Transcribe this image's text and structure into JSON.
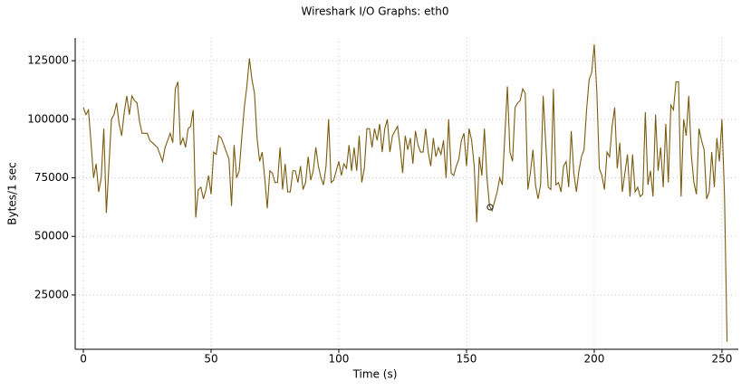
{
  "chart_data": {
    "type": "line",
    "title": "Wireshark I/O Graphs: eth0",
    "x_label": "Time (s)",
    "y_label": "Bytes/1 sec",
    "grid": true,
    "xlim": [
      -3.2,
      256.4
    ],
    "ylim": [
      1800,
      134700
    ],
    "xticks": [
      0,
      50,
      100,
      150,
      200,
      250
    ],
    "yticks": [
      25000,
      50000,
      75000,
      100000,
      125000
    ],
    "x": [
      0,
      1,
      2,
      3,
      4,
      5,
      6,
      7,
      8,
      9,
      10,
      11,
      12,
      13,
      14,
      15,
      16,
      17,
      18,
      19,
      20,
      21,
      22,
      23,
      24,
      25,
      26,
      27,
      28,
      29,
      30,
      31,
      32,
      33,
      34,
      35,
      36,
      37,
      38,
      39,
      40,
      41,
      42,
      43,
      44,
      45,
      46,
      47,
      48,
      49,
      50,
      51,
      52,
      53,
      54,
      55,
      56,
      57,
      58,
      59,
      60,
      61,
      62,
      63,
      64,
      65,
      66,
      67,
      68,
      69,
      70,
      71,
      72,
      73,
      74,
      75,
      76,
      77,
      78,
      79,
      80,
      81,
      82,
      83,
      84,
      85,
      86,
      87,
      88,
      89,
      90,
      91,
      92,
      93,
      94,
      95,
      96,
      97,
      98,
      99,
      100,
      101,
      102,
      103,
      104,
      105,
      106,
      107,
      108,
      109,
      110,
      111,
      112,
      113,
      114,
      115,
      116,
      117,
      118,
      119,
      120,
      121,
      122,
      123,
      124,
      125,
      126,
      127,
      128,
      129,
      130,
      131,
      132,
      133,
      134,
      135,
      136,
      137,
      138,
      139,
      140,
      141,
      142,
      143,
      144,
      145,
      146,
      147,
      148,
      149,
      150,
      151,
      152,
      153,
      154,
      155,
      156,
      157,
      158,
      159,
      160,
      161,
      162,
      163,
      164,
      165,
      166,
      167,
      168,
      169,
      170,
      171,
      172,
      173,
      174,
      175,
      176,
      177,
      178,
      179,
      180,
      181,
      182,
      183,
      184,
      185,
      186,
      187,
      188,
      189,
      190,
      191,
      192,
      193,
      194,
      195,
      196,
      197,
      198,
      199,
      200,
      201,
      202,
      203,
      204,
      205,
      206,
      207,
      208,
      209,
      210,
      211,
      212,
      213,
      214,
      215,
      216,
      217,
      218,
      219,
      220,
      221,
      222,
      223,
      224,
      225,
      226,
      227,
      228,
      229,
      230,
      231,
      232,
      233,
      234,
      235,
      236,
      237,
      238,
      239,
      240,
      241,
      242,
      243,
      244,
      245,
      246,
      247,
      248,
      249,
      250,
      251,
      252
    ],
    "series": [
      {
        "name": "eth0",
        "color": "#7a5c10",
        "values": [
          105000,
          102000,
          104000,
          90000,
          75000,
          81000,
          69000,
          75000,
          96000,
          60000,
          80000,
          100000,
          102000,
          107000,
          98000,
          93000,
          103000,
          110000,
          102000,
          110000,
          108000,
          107000,
          99000,
          94000,
          94000,
          94000,
          91000,
          90000,
          89000,
          88000,
          85000,
          82000,
          88000,
          91000,
          94000,
          90000,
          113000,
          116000,
          89000,
          92000,
          88000,
          96000,
          97000,
          104000,
          58000,
          70000,
          71000,
          66000,
          70000,
          76000,
          68000,
          86000,
          85000,
          93000,
          92000,
          89000,
          86000,
          83000,
          63000,
          89000,
          75000,
          78000,
          92000,
          105000,
          114000,
          126000,
          117000,
          111000,
          92000,
          82000,
          86000,
          75000,
          62000,
          78000,
          77000,
          73000,
          73000,
          88000,
          70000,
          81000,
          69000,
          69000,
          78000,
          78000,
          73000,
          80000,
          70000,
          73000,
          84000,
          74000,
          78000,
          88000,
          80000,
          75000,
          72000,
          80000,
          100000,
          73000,
          74000,
          78000,
          82000,
          76000,
          81000,
          79000,
          89000,
          78000,
          88000,
          78000,
          93000,
          73000,
          79000,
          96000,
          96000,
          88000,
          96000,
          91000,
          98000,
          86000,
          96000,
          100000,
          86000,
          93000,
          95000,
          97000,
          88000,
          77000,
          93000,
          87000,
          92000,
          81000,
          95000,
          89000,
          86000,
          86000,
          96000,
          86000,
          80000,
          92000,
          84000,
          88000,
          85000,
          91000,
          75000,
          100000,
          77000,
          76000,
          80000,
          83000,
          91000,
          94000,
          80000,
          96000,
          91000,
          80000,
          56000,
          84000,
          76000,
          96000,
          75000,
          63000,
          61000,
          65000,
          69000,
          75000,
          72000,
          93000,
          114000,
          86000,
          82000,
          105000,
          107000,
          108000,
          113000,
          111000,
          70000,
          77000,
          87000,
          72000,
          66000,
          72000,
          110000,
          90000,
          71000,
          70000,
          113000,
          72000,
          73000,
          69000,
          80000,
          82000,
          71000,
          95000,
          77000,
          69000,
          78000,
          84000,
          87000,
          104000,
          117000,
          120000,
          132000,
          112000,
          79000,
          76000,
          70000,
          86000,
          84000,
          97000,
          105000,
          79000,
          90000,
          69000,
          77000,
          85000,
          67000,
          85000,
          69000,
          71000,
          67000,
          68000,
          103000,
          72000,
          78000,
          67000,
          102000,
          78000,
          88000,
          71000,
          98000,
          73000,
          106000,
          104000,
          116000,
          116000,
          67000,
          100000,
          93000,
          110000,
          85000,
          73000,
          68000,
          96000,
          91000,
          87000,
          66000,
          69000,
          86000,
          71000,
          92000,
          82000,
          100000,
          67000,
          5000
        ]
      }
    ]
  }
}
